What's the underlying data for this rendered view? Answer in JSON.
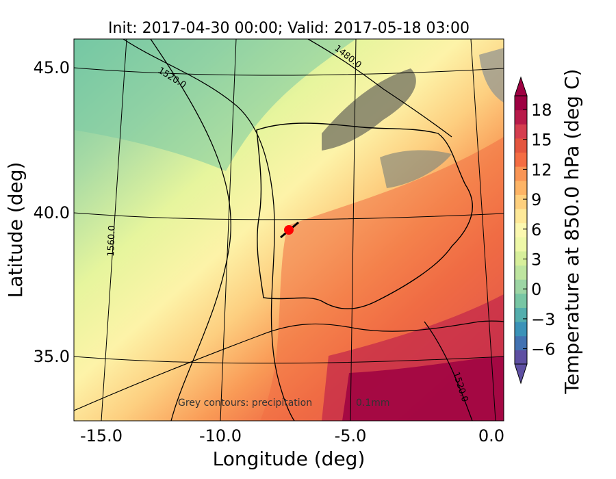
{
  "title": "Init: 2017-04-30 00:00; Valid: 2017-05-18 03:00",
  "axes": {
    "xlabel": "Longitude (deg)",
    "ylabel": "Latitude (deg)",
    "xticks": [
      "-15.0",
      "-10.0",
      "-5.0",
      "0.0"
    ],
    "yticks": [
      "45.0",
      "40.0",
      "35.0"
    ]
  },
  "colorbar": {
    "label": "Temperature at 850.0 hPa (deg C)",
    "ticks": [
      "18",
      "15",
      "12",
      "9",
      "6",
      "3",
      "0",
      "−3",
      "−6"
    ],
    "colors": [
      "#5e4fa2",
      "#4272b2",
      "#3b92b8",
      "#54aead",
      "#78c6a4",
      "#9dd5a4",
      "#bee5a0",
      "#d7ef9b",
      "#eef8a8",
      "#fbf8b0",
      "#fee999",
      "#fed07e",
      "#fdb466",
      "#f99555",
      "#f46d43",
      "#e4563f",
      "#d53e4f",
      "#b81b4a",
      "#9e0142"
    ],
    "extend": "both"
  },
  "contour_labels": [
    "1480.0",
    "1520.0",
    "1560.0",
    "1520.0"
  ],
  "note": "Grey contours: precipitation",
  "note_tail": "0.1mm",
  "marker": {
    "color": "#ff0000",
    "edge": "#000000"
  }
}
